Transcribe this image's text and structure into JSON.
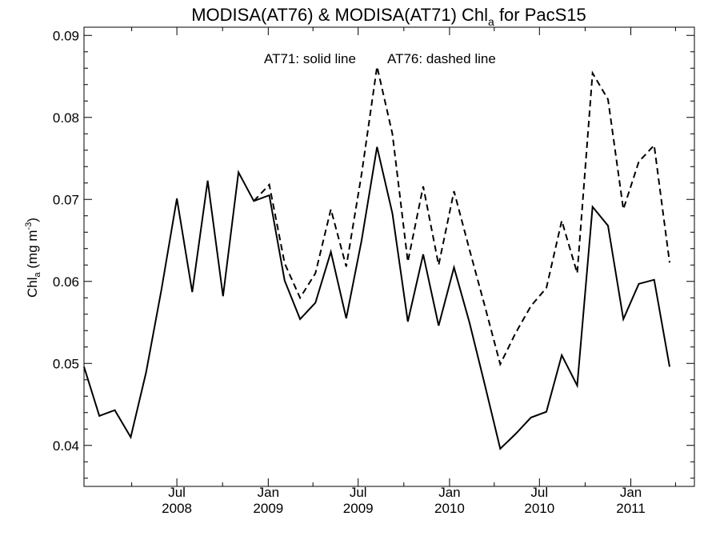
{
  "chart_data": {
    "type": "line",
    "title": "MODISA(AT76) & MODISA(AT71)  Chl",
    "title_sub": "a",
    "title_suffix": " for PacS15",
    "ylabel": "Chl",
    "ylabel_sub": "a",
    "ylabel_units": " (mg m",
    "ylabel_sup": "-3",
    "ylabel_close": ")",
    "annotation_solid": "AT71: solid line",
    "annotation_dashed": "AT76: dashed line",
    "xlim": [
      "2007-12-27",
      "2011-05-09"
    ],
    "ylim": [
      0.035,
      0.091
    ],
    "yticks": [
      "0.04",
      "0.05",
      "0.06",
      "0.07",
      "0.08",
      "0.09"
    ],
    "xticks": [
      {
        "month": "Jul",
        "year": "2008",
        "date": "2008-07-01"
      },
      {
        "month": "Jan",
        "year": "2009",
        "date": "2009-01-01"
      },
      {
        "month": "Jul",
        "year": "2009",
        "date": "2009-07-01"
      },
      {
        "month": "Jan",
        "year": "2010",
        "date": "2010-01-01"
      },
      {
        "month": "Jul",
        "year": "2010",
        "date": "2010-07-01"
      },
      {
        "month": "Jan",
        "year": "2011",
        "date": "2011-01-01"
      }
    ],
    "minor_ticks": [
      "2008-04-01",
      "2008-10-01",
      "2009-04-01",
      "2009-10-01",
      "2010-04-01",
      "2010-10-01",
      "2011-04-01"
    ],
    "series": [
      {
        "style": "solid",
        "x": [
          "2007-12-27",
          "2008-01-27",
          "2008-02-27",
          "2008-03-30",
          "2008-04-30",
          "2008-05-31",
          "2008-07-01",
          "2008-08-01",
          "2008-09-01",
          "2008-10-02",
          "2008-11-02",
          "2008-12-03",
          "2009-01-03",
          "2009-02-03",
          "2009-03-06",
          "2009-04-06",
          "2009-05-07",
          "2009-06-07",
          "2009-07-08",
          "2009-08-08",
          "2009-09-08",
          "2009-10-09",
          "2009-11-09",
          "2009-12-10",
          "2010-01-10",
          "2010-02-10",
          "2010-03-13",
          "2010-04-13",
          "2010-05-14",
          "2010-06-14",
          "2010-07-15",
          "2010-08-15",
          "2010-09-15",
          "2010-10-16",
          "2010-11-16",
          "2010-12-17",
          "2011-01-17",
          "2011-02-17",
          "2011-03-20",
          "2011-04-20",
          "2011-05-09"
        ],
        "values": [
          0.0496,
          0.0436,
          0.0443,
          0.041,
          0.0489,
          0.059,
          0.0701,
          0.0587,
          0.0723,
          0.0582,
          0.0733,
          0.0698,
          0.0705,
          0.0601,
          0.0554,
          0.0574,
          0.0636,
          0.0555,
          0.065,
          0.0764,
          0.0683,
          0.0551,
          0.0633,
          0.0546,
          0.0617,
          0.055,
          0.0474,
          0.0396,
          0.0414,
          0.0434,
          0.0441,
          0.051,
          0.0473,
          0.0691,
          0.0668,
          0.0554,
          0.0597,
          0.0602,
          0.0496,
          null,
          null
        ]
      },
      {
        "style": "dashed",
        "x": [
          "2008-12-03",
          "2009-01-03",
          "2009-02-03",
          "2009-03-06",
          "2009-04-06",
          "2009-05-07",
          "2009-06-07",
          "2009-07-08",
          "2009-08-08",
          "2009-09-08",
          "2009-10-09",
          "2009-11-09",
          "2009-12-10",
          "2010-01-10",
          "2010-02-10",
          "2010-03-13",
          "2010-04-13",
          "2010-05-14",
          "2010-06-14",
          "2010-07-15",
          "2010-08-15",
          "2010-09-15",
          "2010-10-16",
          "2010-11-16",
          "2010-12-17",
          "2011-01-17",
          "2011-02-17",
          "2011-03-20"
        ],
        "values": [
          0.0698,
          0.0718,
          0.0622,
          0.058,
          0.061,
          0.0688,
          0.0618,
          0.0731,
          0.0862,
          0.078,
          0.0624,
          0.0716,
          0.062,
          0.071,
          0.0639,
          0.057,
          0.0499,
          0.0537,
          0.057,
          0.0592,
          0.0674,
          0.061,
          0.0854,
          0.0822,
          0.0688,
          0.0746,
          0.0766,
          0.0623
        ]
      }
    ]
  }
}
